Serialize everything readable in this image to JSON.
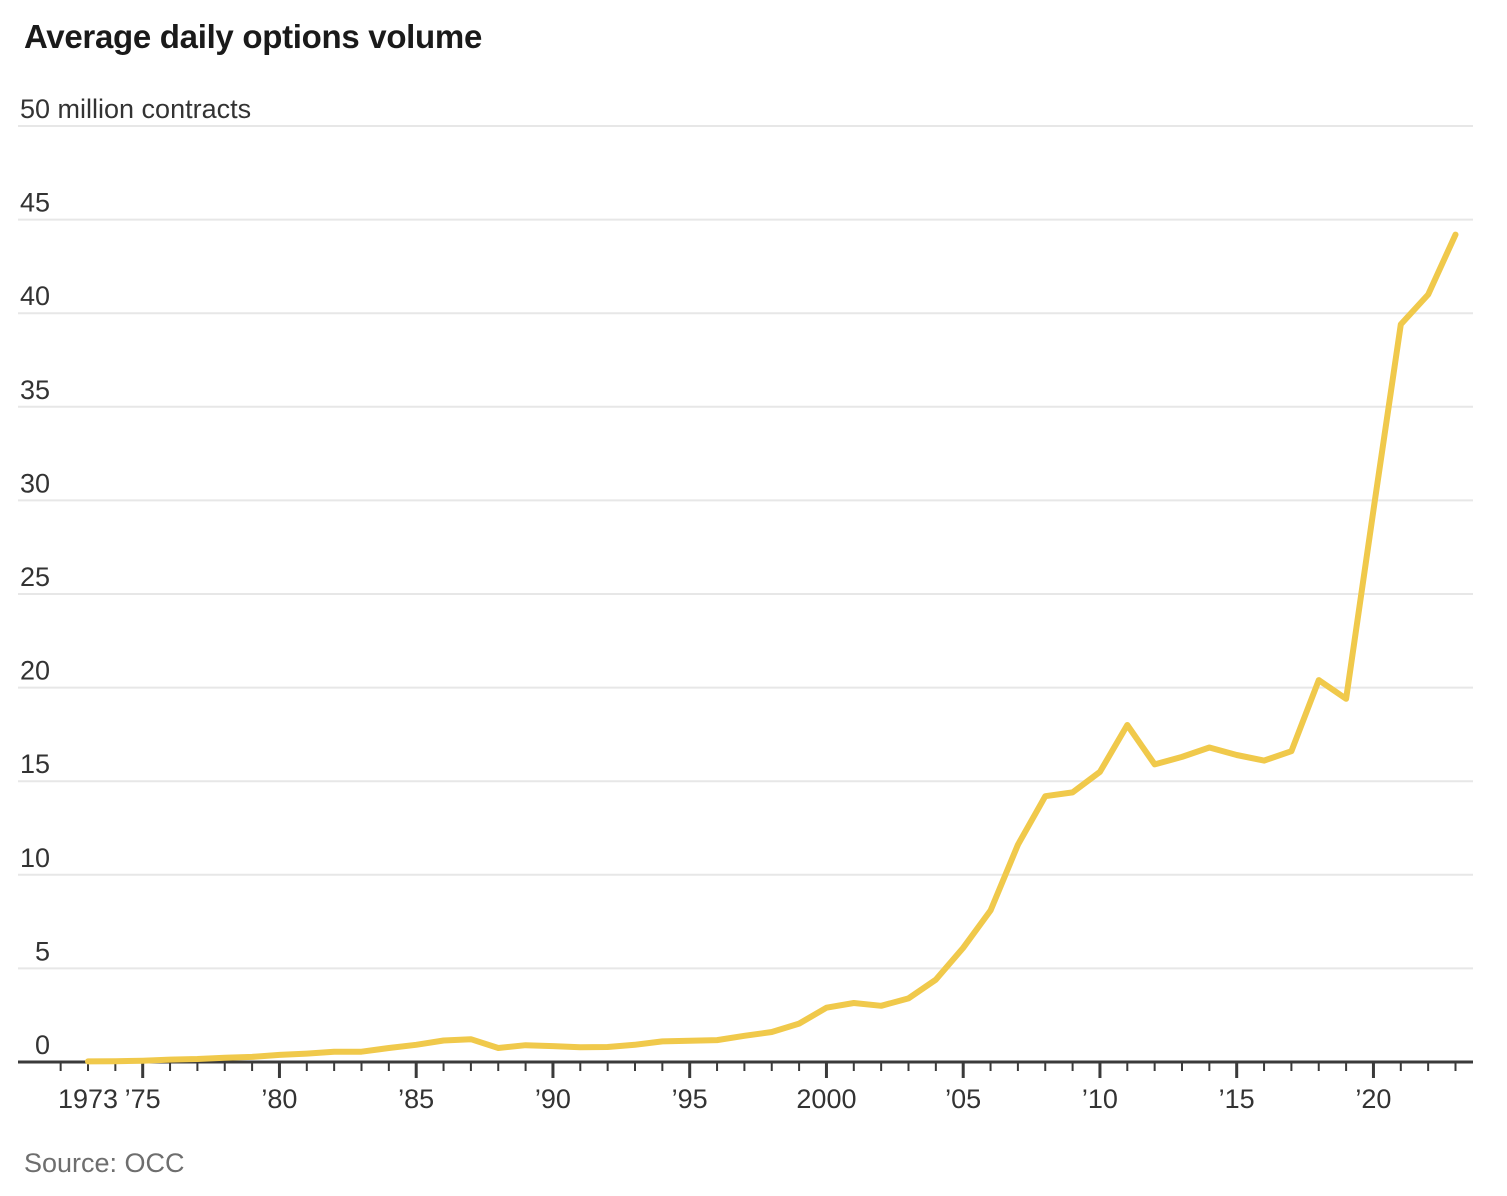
{
  "page": {
    "title": "Average daily options volume",
    "unit_label": "50 million contracts",
    "source": "Source: OCC"
  },
  "chart_data": {
    "type": "line",
    "title": "Average daily options volume",
    "ylabel": "million contracts",
    "unit_label": "50 million contracts",
    "source": "Source: OCC",
    "x": [
      1973,
      1974,
      1975,
      1976,
      1977,
      1978,
      1979,
      1980,
      1981,
      1982,
      1983,
      1984,
      1985,
      1986,
      1987,
      1988,
      1989,
      1990,
      1991,
      1992,
      1993,
      1994,
      1995,
      1996,
      1997,
      1998,
      1999,
      2000,
      2001,
      2002,
      2003,
      2004,
      2005,
      2006,
      2007,
      2008,
      2009,
      2010,
      2011,
      2012,
      2013,
      2014,
      2015,
      2016,
      2017,
      2018,
      2019,
      2020,
      2021,
      2022,
      2023
    ],
    "series": [
      {
        "name": "Average daily options volume (millions of contracts)",
        "values": [
          0.03,
          0.04,
          0.07,
          0.13,
          0.16,
          0.23,
          0.27,
          0.38,
          0.45,
          0.55,
          0.55,
          0.75,
          0.92,
          1.15,
          1.22,
          0.75,
          0.9,
          0.85,
          0.79,
          0.8,
          0.92,
          1.1,
          1.13,
          1.17,
          1.4,
          1.6,
          2.05,
          2.9,
          3.15,
          3.0,
          3.4,
          4.4,
          6.1,
          8.1,
          11.6,
          14.2,
          14.4,
          15.5,
          18.0,
          15.9,
          16.3,
          16.8,
          16.4,
          16.1,
          16.6,
          20.4,
          19.4,
          29.5,
          39.4,
          41.0,
          44.2
        ]
      }
    ],
    "ylim": [
      0,
      50
    ],
    "ytick_step": 5,
    "yticks_labeled": [
      0,
      5,
      10,
      15,
      20,
      25,
      30,
      35,
      40,
      45
    ],
    "xaxis_range": [
      1972,
      2023.6
    ],
    "xtick_minor_every_years": 1,
    "xtick_major_every_years": 5,
    "xticks": [
      {
        "year": 1973,
        "label": "1973"
      },
      {
        "year": 1975,
        "label": "’75"
      },
      {
        "year": 1980,
        "label": "’80"
      },
      {
        "year": 1985,
        "label": "’85"
      },
      {
        "year": 1990,
        "label": "’90"
      },
      {
        "year": 1995,
        "label": "’95"
      },
      {
        "year": 2000,
        "label": "2000"
      },
      {
        "year": 2005,
        "label": "’05"
      },
      {
        "year": 2010,
        "label": "’10"
      },
      {
        "year": 2015,
        "label": "’15"
      },
      {
        "year": 2020,
        "label": "’20"
      }
    ],
    "grid": true,
    "legend": "none",
    "colors": {
      "line": "#F0C94B",
      "grid": "#E7E7E7",
      "axis": "#3A3A3A",
      "title": "#1A1A1A",
      "labels": "#333333",
      "source": "#6E6E6E",
      "background": "#FFFFFF"
    }
  }
}
